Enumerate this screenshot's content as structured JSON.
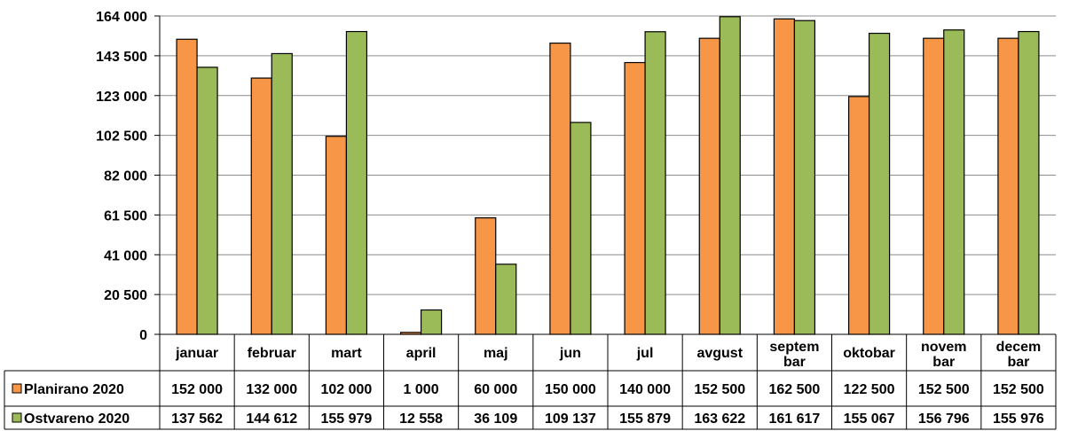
{
  "chart_data": {
    "type": "bar",
    "categories": [
      "januar",
      "februar",
      "mart",
      "april",
      "maj",
      "jun",
      "jul",
      "avgust",
      "septem bar",
      "oktobar",
      "novem bar",
      "decem bar"
    ],
    "series": [
      {
        "name": "Planirano 2020",
        "color": "#f79646",
        "values": [
          152000,
          132000,
          102000,
          1000,
          60000,
          150000,
          140000,
          152500,
          162500,
          122500,
          152500,
          152500
        ],
        "labels": [
          "152 000",
          "132 000",
          "102 000",
          "1 000",
          "60 000",
          "150 000",
          "140 000",
          "152 500",
          "162 500",
          "122 500",
          "152 500",
          "152 500"
        ]
      },
      {
        "name": "Ostvareno 2020",
        "color": "#9bbb59",
        "values": [
          137562,
          144612,
          155979,
          12558,
          36109,
          109137,
          155879,
          163622,
          161617,
          155067,
          156796,
          155976
        ],
        "labels": [
          "137 562",
          "144 612",
          "155 979",
          "12 558",
          "36 109",
          "109 137",
          "155 879",
          "163 622",
          "161 617",
          "155 067",
          "156 796",
          "155 976"
        ]
      }
    ],
    "yticks": [
      0,
      20500,
      41000,
      61500,
      82000,
      102500,
      123000,
      143500,
      164000
    ],
    "ytick_labels": [
      "0",
      "20 500",
      "41 000",
      "61 500",
      "82 000",
      "102 500",
      "123 000",
      "143 500",
      "164 000"
    ],
    "ylim": [
      0,
      164000
    ],
    "grid": true,
    "legend": "data-table"
  }
}
